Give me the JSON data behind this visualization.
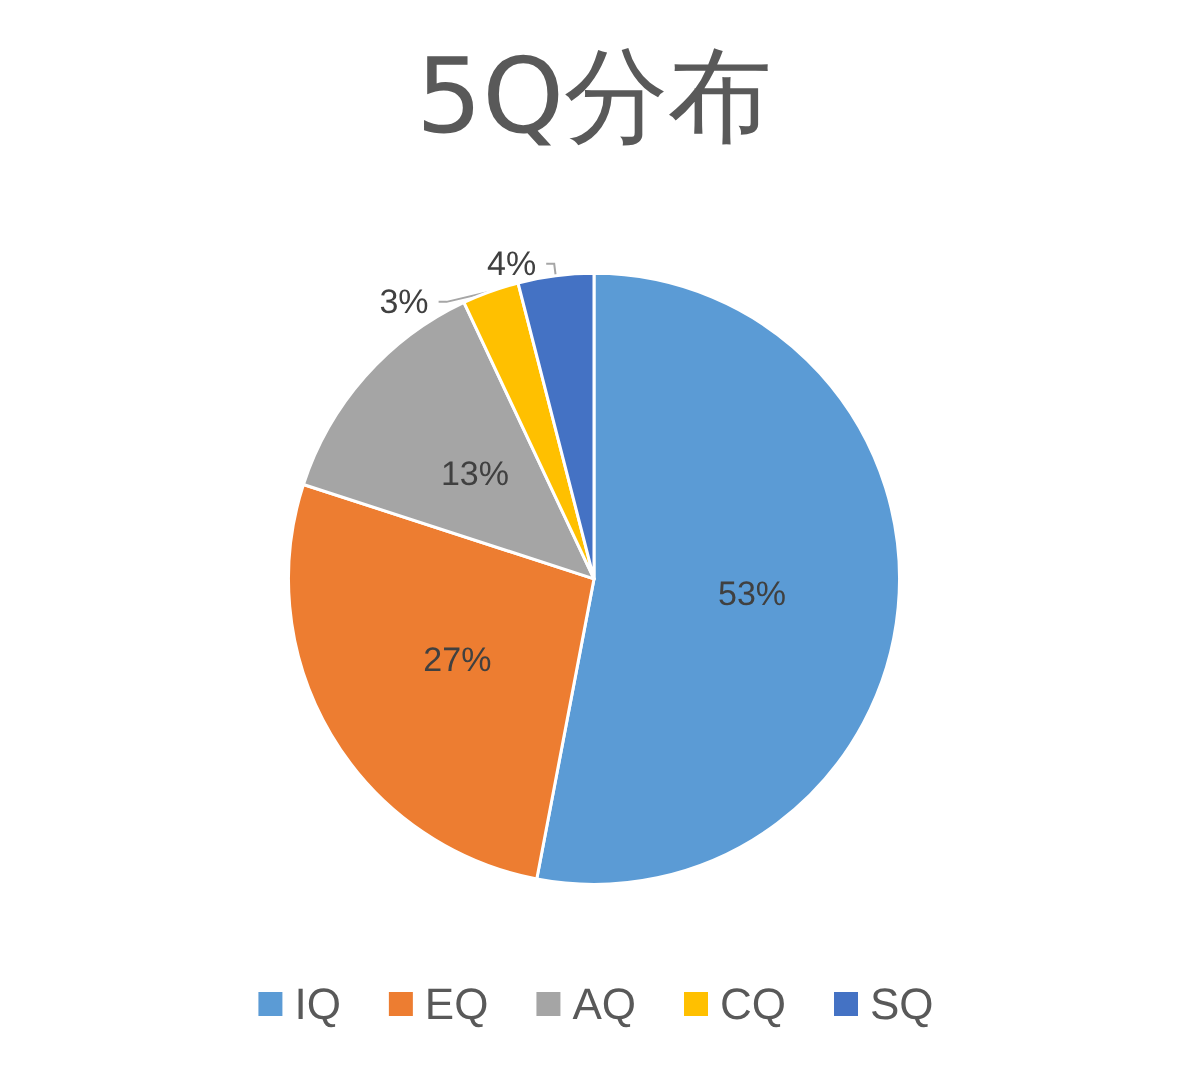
{
  "chart_data": {
    "type": "pie",
    "title": "5Q分布",
    "categories": [
      "IQ",
      "EQ",
      "AQ",
      "CQ",
      "SQ"
    ],
    "values": [
      53,
      27,
      13,
      3,
      4
    ],
    "colors": [
      "#5b9bd5",
      "#ed7d31",
      "#a5a5a5",
      "#ffc000",
      "#4472c4"
    ],
    "value_labels": [
      "53%",
      "27%",
      "13%",
      "3%",
      "4%"
    ],
    "legend": "bottom"
  }
}
